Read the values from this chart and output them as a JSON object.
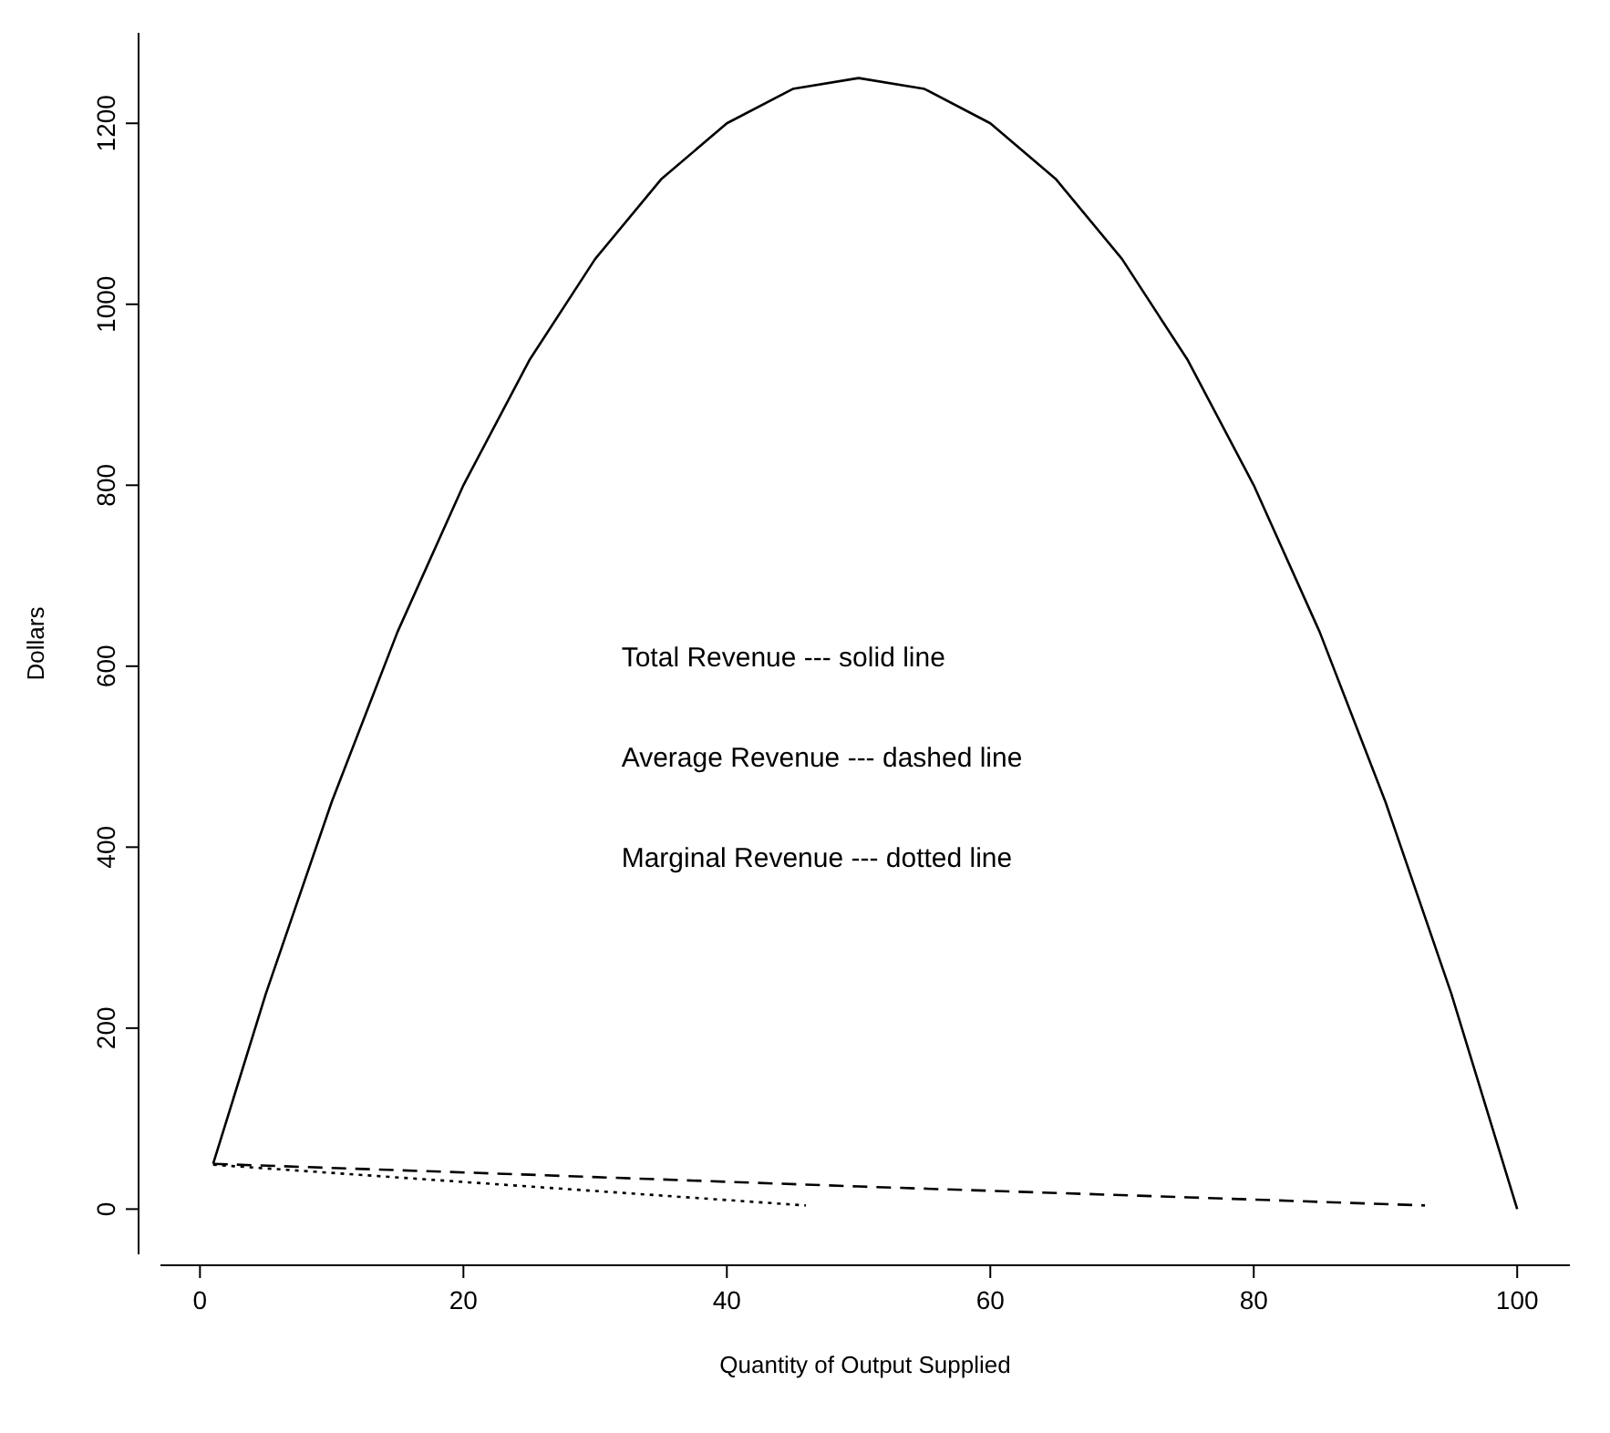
{
  "chart_data": {
    "type": "line",
    "xlabel": "Quantity of Output Supplied",
    "ylabel": "Dollars",
    "xlim": [
      -3,
      104
    ],
    "xticks": [
      0,
      20,
      40,
      60,
      80,
      100
    ],
    "ylim": [
      -50,
      1300
    ],
    "yticks": [
      0,
      200,
      400,
      600,
      800,
      1000,
      1200
    ],
    "grid": false,
    "marker": "none",
    "annotations": [
      "Total Revenue --- solid line",
      "Average Revenue --- dashed line",
      "Marginal Revenue --- dotted line"
    ],
    "series": [
      {
        "color": "#000000",
        "line_style": "solid",
        "x": [
          1,
          5,
          10,
          15,
          20,
          25,
          30,
          35,
          40,
          45,
          50,
          55,
          60,
          65,
          70,
          75,
          80,
          85,
          90,
          95,
          100
        ],
        "values": [
          50,
          238,
          450,
          638,
          800,
          938,
          1050,
          1138,
          1200,
          1238,
          1250,
          1238,
          1200,
          1138,
          1050,
          938,
          800,
          638,
          450,
          238,
          0
        ]
      },
      {
        "color": "#000000",
        "line_style": "dashed",
        "x": [
          1,
          25,
          50,
          75,
          93
        ],
        "values": [
          50,
          38,
          25,
          13,
          4
        ]
      },
      {
        "color": "#000000",
        "line_style": "dotted",
        "x": [
          1,
          20,
          46
        ],
        "values": [
          49,
          30,
          4
        ]
      }
    ]
  }
}
